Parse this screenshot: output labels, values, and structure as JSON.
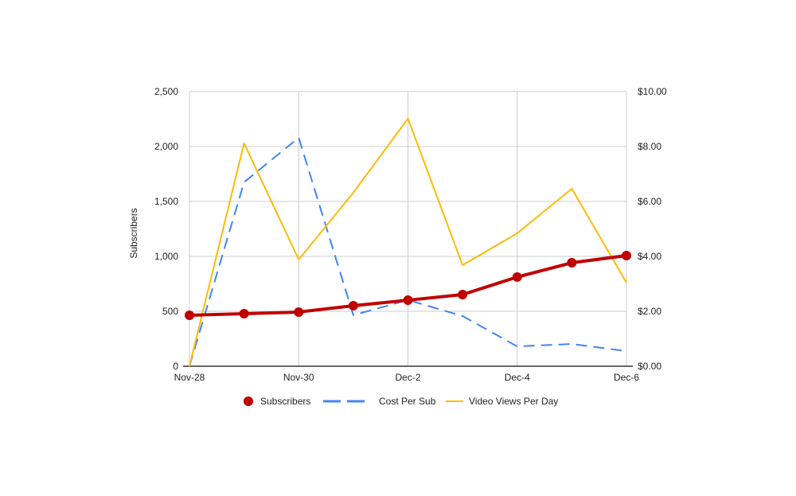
{
  "chart_data": {
    "type": "line",
    "title": "",
    "x": [
      "Nov-28",
      "Nov-29",
      "Nov-30",
      "Dec-1",
      "Dec-2",
      "Dec-3",
      "Dec-4",
      "Dec-5",
      "Dec-6"
    ],
    "x_tick_labels": [
      "Nov-28",
      "Nov-30",
      "Dec-2",
      "Dec-4",
      "Dec-6"
    ],
    "ylabel": "Subscribers",
    "ylim": [
      0,
      2500
    ],
    "y_ticks": [
      "0",
      "500",
      "1,000",
      "1,500",
      "2,000",
      "2,500"
    ],
    "y2lim": [
      0,
      10
    ],
    "y2_ticks": [
      "$0.00",
      "$2.00",
      "$4.00",
      "$6.00",
      "$8.00",
      "$10.00"
    ],
    "grid": true,
    "legend_position": "bottom",
    "series": [
      {
        "name": "Subscribers",
        "axis": "left",
        "style": "solid-thick-markers",
        "color": "#c00000",
        "values": [
          464,
          478,
          493,
          551,
          601,
          652,
          812,
          942,
          1007
        ]
      },
      {
        "name": "Cost Per Sub",
        "axis": "right",
        "style": "dashed",
        "color": "#4285f4",
        "values": [
          0.0,
          6.7,
          8.32,
          1.86,
          2.41,
          1.83,
          0.72,
          0.81,
          0.55
        ]
      },
      {
        "name": "Video Views Per Day",
        "axis": "left",
        "style": "solid",
        "color": "#fbbc04",
        "values": [
          0,
          2029,
          971,
          1580,
          2254,
          920,
          1210,
          1616,
          761
        ]
      }
    ]
  }
}
